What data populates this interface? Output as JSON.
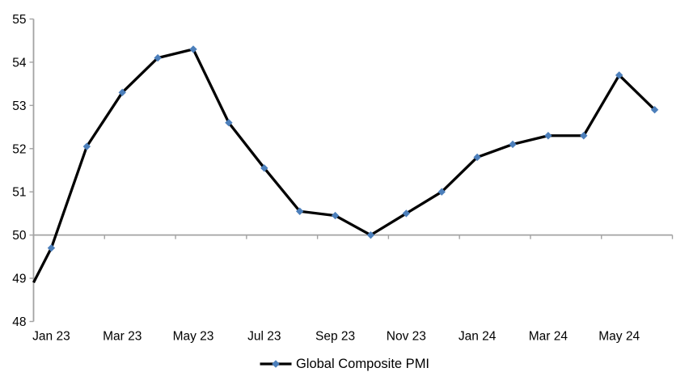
{
  "chart_data": {
    "type": "line",
    "title": "",
    "categories": [
      "Jan 23",
      "Feb 23",
      "Mar 23",
      "Apr 23",
      "May 23",
      "Jun 23",
      "Jul 23",
      "Aug 23",
      "Sep 23",
      "Oct 23",
      "Nov 23",
      "Dec 23",
      "Jan 24",
      "Feb 24",
      "Mar 24",
      "Apr 24",
      "May 24",
      "Jun 24"
    ],
    "series": [
      {
        "name": "Global Composite PMI",
        "values": [
          49.7,
          52.05,
          53.3,
          54.1,
          54.3,
          52.6,
          51.55,
          50.55,
          50.45,
          50.0,
          50.5,
          51.0,
          51.8,
          52.1,
          52.3,
          52.3,
          53.7,
          52.9
        ],
        "edge_entry_value": 48.9,
        "line_color": "#000000",
        "marker": "diamond",
        "marker_color": "#4C7FBB"
      }
    ],
    "x_tick_labels": [
      "Jan 23",
      "Mar 23",
      "May 23",
      "Jul 23",
      "Sep 23",
      "Nov 23",
      "Jan 24",
      "Mar 24",
      "May 24"
    ],
    "x_tick_label_every": 2,
    "y_axis": {
      "min": 48,
      "max": 55,
      "step": 1,
      "tick_labels": [
        "48",
        "49",
        "50",
        "51",
        "52",
        "53",
        "54",
        "55"
      ]
    },
    "baseline_value": 50,
    "axis_color": "#A3A3A3",
    "text_color": "#000000",
    "grid": "baseline-at-50-only",
    "legend": {
      "label": "Global Composite PMI",
      "position": "bottom-center"
    }
  }
}
